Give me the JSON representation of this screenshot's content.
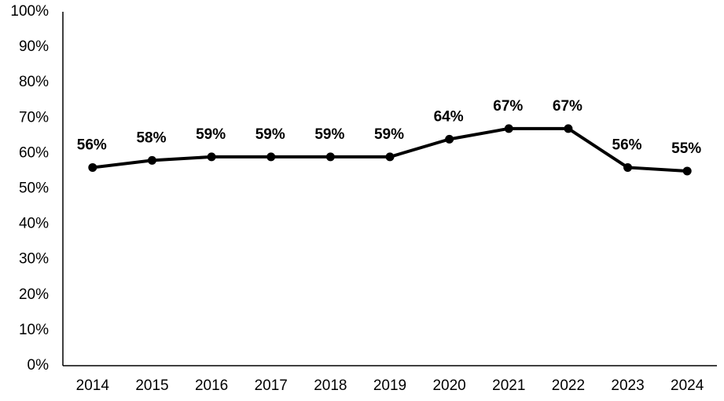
{
  "chart_data": {
    "type": "line",
    "categories": [
      "2014",
      "2015",
      "2016",
      "2017",
      "2018",
      "2019",
      "2020",
      "2021",
      "2022",
      "2023",
      "2024"
    ],
    "values": [
      56,
      58,
      59,
      59,
      59,
      59,
      64,
      67,
      67,
      56,
      55
    ],
    "value_labels": [
      "56%",
      "58%",
      "59%",
      "59%",
      "59%",
      "59%",
      "64%",
      "67%",
      "67%",
      "56%",
      "55%"
    ],
    "color": "#000000",
    "ylim": [
      0,
      100
    ],
    "yticks": [
      {
        "value": 0,
        "label": "0%"
      },
      {
        "value": 10,
        "label": "10%"
      },
      {
        "value": 20,
        "label": "20%"
      },
      {
        "value": 30,
        "label": "30%"
      },
      {
        "value": 40,
        "label": "40%"
      },
      {
        "value": 50,
        "label": "50%"
      },
      {
        "value": 60,
        "label": "60%"
      },
      {
        "value": 70,
        "label": "70%"
      },
      {
        "value": 80,
        "label": "80%"
      },
      {
        "value": 90,
        "label": "90%"
      },
      {
        "value": 100,
        "label": "100%"
      }
    ],
    "grid": false
  }
}
